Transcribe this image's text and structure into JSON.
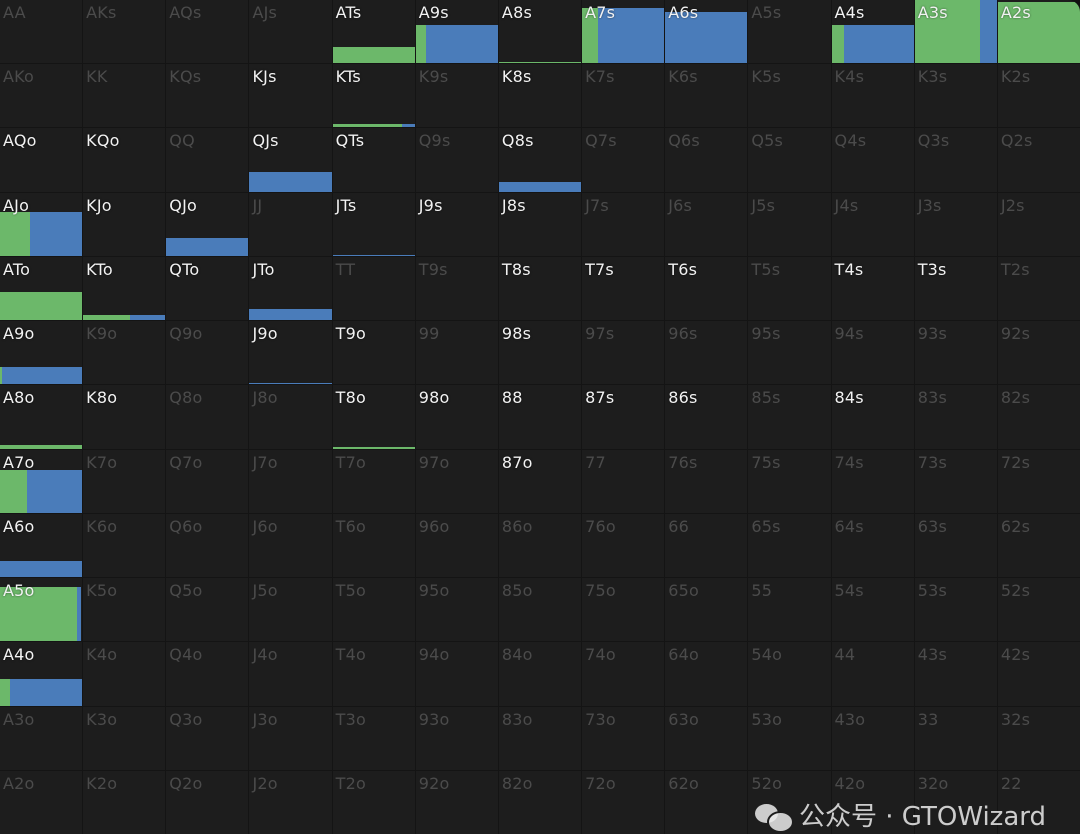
{
  "colors": {
    "raise": "#6cb86a",
    "call": "#4a7cba",
    "cell_bg": "#1d1d1d",
    "active_text": "#f2f2f2",
    "inactive_text": "#4b4b4b"
  },
  "watermark": {
    "text": "公众号 · GTOWizard",
    "icon": "wechat-icon"
  },
  "grid": [
    {
      "cells": [
        {
          "label": "AA",
          "active": false
        },
        {
          "label": "AKs",
          "active": false
        },
        {
          "label": "AQs",
          "active": false
        },
        {
          "label": "AJs",
          "active": false
        },
        {
          "label": "ATs",
          "active": true,
          "bar": [
            0.25,
            1,
            0
          ]
        },
        {
          "label": "A9s",
          "active": true,
          "bar": [
            0.6,
            0.13,
            0.87
          ]
        },
        {
          "label": "A8s",
          "active": true,
          "bar": [
            0.02,
            1,
            0
          ]
        },
        {
          "label": "A7s",
          "active": true,
          "bar": [
            0.87,
            0.2,
            0.8
          ]
        },
        {
          "label": "A6s",
          "active": true,
          "bar": [
            0.81,
            0,
            1
          ]
        },
        {
          "label": "A5s",
          "active": false
        },
        {
          "label": "A4s",
          "active": true,
          "bar": [
            0.6,
            0.15,
            0.85
          ]
        },
        {
          "label": "A3s",
          "active": true,
          "bar": [
            1,
            0.8,
            0.2
          ]
        },
        {
          "label": "A2s",
          "active": true,
          "bar": [
            0.97,
            1,
            0
          ]
        }
      ]
    },
    {
      "cells": [
        {
          "label": "AKo",
          "active": false
        },
        {
          "label": "KK",
          "active": false
        },
        {
          "label": "KQs",
          "active": false
        },
        {
          "label": "KJs",
          "active": true
        },
        {
          "label": "KTs",
          "active": true,
          "bar": [
            0.06,
            0.85,
            0.15
          ]
        },
        {
          "label": "K9s",
          "active": false
        },
        {
          "label": "K8s",
          "active": true
        },
        {
          "label": "K7s",
          "active": false
        },
        {
          "label": "K6s",
          "active": false
        },
        {
          "label": "K5s",
          "active": false
        },
        {
          "label": "K4s",
          "active": false
        },
        {
          "label": "K3s",
          "active": false
        },
        {
          "label": "K2s",
          "active": false
        }
      ]
    },
    {
      "cells": [
        {
          "label": "AQo",
          "active": true
        },
        {
          "label": "KQo",
          "active": true
        },
        {
          "label": "QQ",
          "active": false
        },
        {
          "label": "QJs",
          "active": true,
          "bar": [
            0.31,
            0,
            1
          ]
        },
        {
          "label": "QTs",
          "active": true
        },
        {
          "label": "Q9s",
          "active": false
        },
        {
          "label": "Q8s",
          "active": true,
          "bar": [
            0.15,
            0,
            1
          ]
        },
        {
          "label": "Q7s",
          "active": false
        },
        {
          "label": "Q6s",
          "active": false
        },
        {
          "label": "Q5s",
          "active": false
        },
        {
          "label": "Q4s",
          "active": false
        },
        {
          "label": "Q3s",
          "active": false
        },
        {
          "label": "Q2s",
          "active": false
        }
      ]
    },
    {
      "cells": [
        {
          "label": "AJo",
          "active": true,
          "bar": [
            0.7,
            0.36,
            0.64
          ]
        },
        {
          "label": "KJo",
          "active": true
        },
        {
          "label": "QJo",
          "active": true,
          "bar": [
            0.29,
            0,
            1
          ]
        },
        {
          "label": "JJ",
          "active": false
        },
        {
          "label": "JTs",
          "active": true,
          "bar": [
            0.02,
            0,
            1
          ]
        },
        {
          "label": "J9s",
          "active": true
        },
        {
          "label": "J8s",
          "active": true
        },
        {
          "label": "J7s",
          "active": false
        },
        {
          "label": "J6s",
          "active": false
        },
        {
          "label": "J5s",
          "active": false
        },
        {
          "label": "J4s",
          "active": false
        },
        {
          "label": "J3s",
          "active": false
        },
        {
          "label": "J2s",
          "active": false
        }
      ]
    },
    {
      "cells": [
        {
          "label": "ATo",
          "active": true,
          "bar": [
            0.45,
            1,
            0
          ]
        },
        {
          "label": "KTo",
          "active": true,
          "bar": [
            0.08,
            0.57,
            0.43
          ]
        },
        {
          "label": "QTo",
          "active": true
        },
        {
          "label": "JTo",
          "active": true,
          "bar": [
            0.18,
            0,
            1
          ]
        },
        {
          "label": "TT",
          "active": false
        },
        {
          "label": "T9s",
          "active": false
        },
        {
          "label": "T8s",
          "active": true
        },
        {
          "label": "T7s",
          "active": true
        },
        {
          "label": "T6s",
          "active": true
        },
        {
          "label": "T5s",
          "active": false
        },
        {
          "label": "T4s",
          "active": true
        },
        {
          "label": "T3s",
          "active": true
        },
        {
          "label": "T2s",
          "active": false
        }
      ]
    },
    {
      "cells": [
        {
          "label": "A9o",
          "active": true,
          "bar": [
            0.28,
            0.02,
            0.98
          ]
        },
        {
          "label": "K9o",
          "active": false
        },
        {
          "label": "Q9o",
          "active": false
        },
        {
          "label": "J9o",
          "active": true,
          "bar": [
            0.02,
            0,
            1
          ]
        },
        {
          "label": "T9o",
          "active": true
        },
        {
          "label": "99",
          "active": false
        },
        {
          "label": "98s",
          "active": true
        },
        {
          "label": "97s",
          "active": false
        },
        {
          "label": "96s",
          "active": false
        },
        {
          "label": "95s",
          "active": false
        },
        {
          "label": "94s",
          "active": false
        },
        {
          "label": "93s",
          "active": false
        },
        {
          "label": "92s",
          "active": false
        }
      ]
    },
    {
      "cells": [
        {
          "label": "A8o",
          "active": true,
          "bar": [
            0.05,
            1,
            0
          ]
        },
        {
          "label": "K8o",
          "active": true
        },
        {
          "label": "Q8o",
          "active": false
        },
        {
          "label": "J8o",
          "active": false
        },
        {
          "label": "T8o",
          "active": true,
          "bar": [
            0.02,
            1,
            0
          ]
        },
        {
          "label": "98o",
          "active": true
        },
        {
          "label": "88",
          "active": true
        },
        {
          "label": "87s",
          "active": true
        },
        {
          "label": "86s",
          "active": true
        },
        {
          "label": "85s",
          "active": false
        },
        {
          "label": "84s",
          "active": true
        },
        {
          "label": "83s",
          "active": false
        },
        {
          "label": "82s",
          "active": false
        }
      ]
    },
    {
      "cells": [
        {
          "label": "A7o",
          "active": true,
          "bar": [
            0.67,
            0.33,
            0.67
          ]
        },
        {
          "label": "K7o",
          "active": false
        },
        {
          "label": "Q7o",
          "active": false
        },
        {
          "label": "J7o",
          "active": false
        },
        {
          "label": "T7o",
          "active": false
        },
        {
          "label": "97o",
          "active": false
        },
        {
          "label": "87o",
          "active": true
        },
        {
          "label": "77",
          "active": false
        },
        {
          "label": "76s",
          "active": false
        },
        {
          "label": "75s",
          "active": false
        },
        {
          "label": "74s",
          "active": false
        },
        {
          "label": "73s",
          "active": false
        },
        {
          "label": "72s",
          "active": false
        }
      ]
    },
    {
      "cells": [
        {
          "label": "A6o",
          "active": true,
          "bar": [
            0.25,
            0,
            1
          ]
        },
        {
          "label": "K6o",
          "active": false
        },
        {
          "label": "Q6o",
          "active": false
        },
        {
          "label": "J6o",
          "active": false
        },
        {
          "label": "T6o",
          "active": false
        },
        {
          "label": "96o",
          "active": false
        },
        {
          "label": "86o",
          "active": false
        },
        {
          "label": "76o",
          "active": false
        },
        {
          "label": "66",
          "active": false
        },
        {
          "label": "65s",
          "active": false
        },
        {
          "label": "64s",
          "active": false
        },
        {
          "label": "63s",
          "active": false
        },
        {
          "label": "62s",
          "active": false
        }
      ]
    },
    {
      "cells": [
        {
          "label": "A5o",
          "active": true,
          "bar": [
            0.86,
            0.94,
            0.05
          ]
        },
        {
          "label": "K5o",
          "active": false
        },
        {
          "label": "Q5o",
          "active": false
        },
        {
          "label": "J5o",
          "active": false
        },
        {
          "label": "T5o",
          "active": false
        },
        {
          "label": "95o",
          "active": false
        },
        {
          "label": "85o",
          "active": false
        },
        {
          "label": "75o",
          "active": false
        },
        {
          "label": "65o",
          "active": false
        },
        {
          "label": "55",
          "active": false
        },
        {
          "label": "54s",
          "active": false
        },
        {
          "label": "53s",
          "active": false
        },
        {
          "label": "52s",
          "active": false
        }
      ]
    },
    {
      "cells": [
        {
          "label": "A4o",
          "active": true,
          "bar": [
            0.42,
            0.12,
            0.88
          ]
        },
        {
          "label": "K4o",
          "active": false
        },
        {
          "label": "Q4o",
          "active": false
        },
        {
          "label": "J4o",
          "active": false
        },
        {
          "label": "T4o",
          "active": false
        },
        {
          "label": "94o",
          "active": false
        },
        {
          "label": "84o",
          "active": false
        },
        {
          "label": "74o",
          "active": false
        },
        {
          "label": "64o",
          "active": false
        },
        {
          "label": "54o",
          "active": false
        },
        {
          "label": "44",
          "active": false
        },
        {
          "label": "43s",
          "active": false
        },
        {
          "label": "42s",
          "active": false
        }
      ]
    },
    {
      "cells": [
        {
          "label": "A3o",
          "active": false
        },
        {
          "label": "K3o",
          "active": false
        },
        {
          "label": "Q3o",
          "active": false
        },
        {
          "label": "J3o",
          "active": false
        },
        {
          "label": "T3o",
          "active": false
        },
        {
          "label": "93o",
          "active": false
        },
        {
          "label": "83o",
          "active": false
        },
        {
          "label": "73o",
          "active": false
        },
        {
          "label": "63o",
          "active": false
        },
        {
          "label": "53o",
          "active": false
        },
        {
          "label": "43o",
          "active": false
        },
        {
          "label": "33",
          "active": false
        },
        {
          "label": "32s",
          "active": false
        }
      ]
    },
    {
      "cells": [
        {
          "label": "A2o",
          "active": false
        },
        {
          "label": "K2o",
          "active": false
        },
        {
          "label": "Q2o",
          "active": false
        },
        {
          "label": "J2o",
          "active": false
        },
        {
          "label": "T2o",
          "active": false
        },
        {
          "label": "92o",
          "active": false
        },
        {
          "label": "82o",
          "active": false
        },
        {
          "label": "72o",
          "active": false
        },
        {
          "label": "62o",
          "active": false
        },
        {
          "label": "52o",
          "active": false
        },
        {
          "label": "42o",
          "active": false
        },
        {
          "label": "32o",
          "active": false
        },
        {
          "label": "22",
          "active": false
        }
      ]
    }
  ]
}
